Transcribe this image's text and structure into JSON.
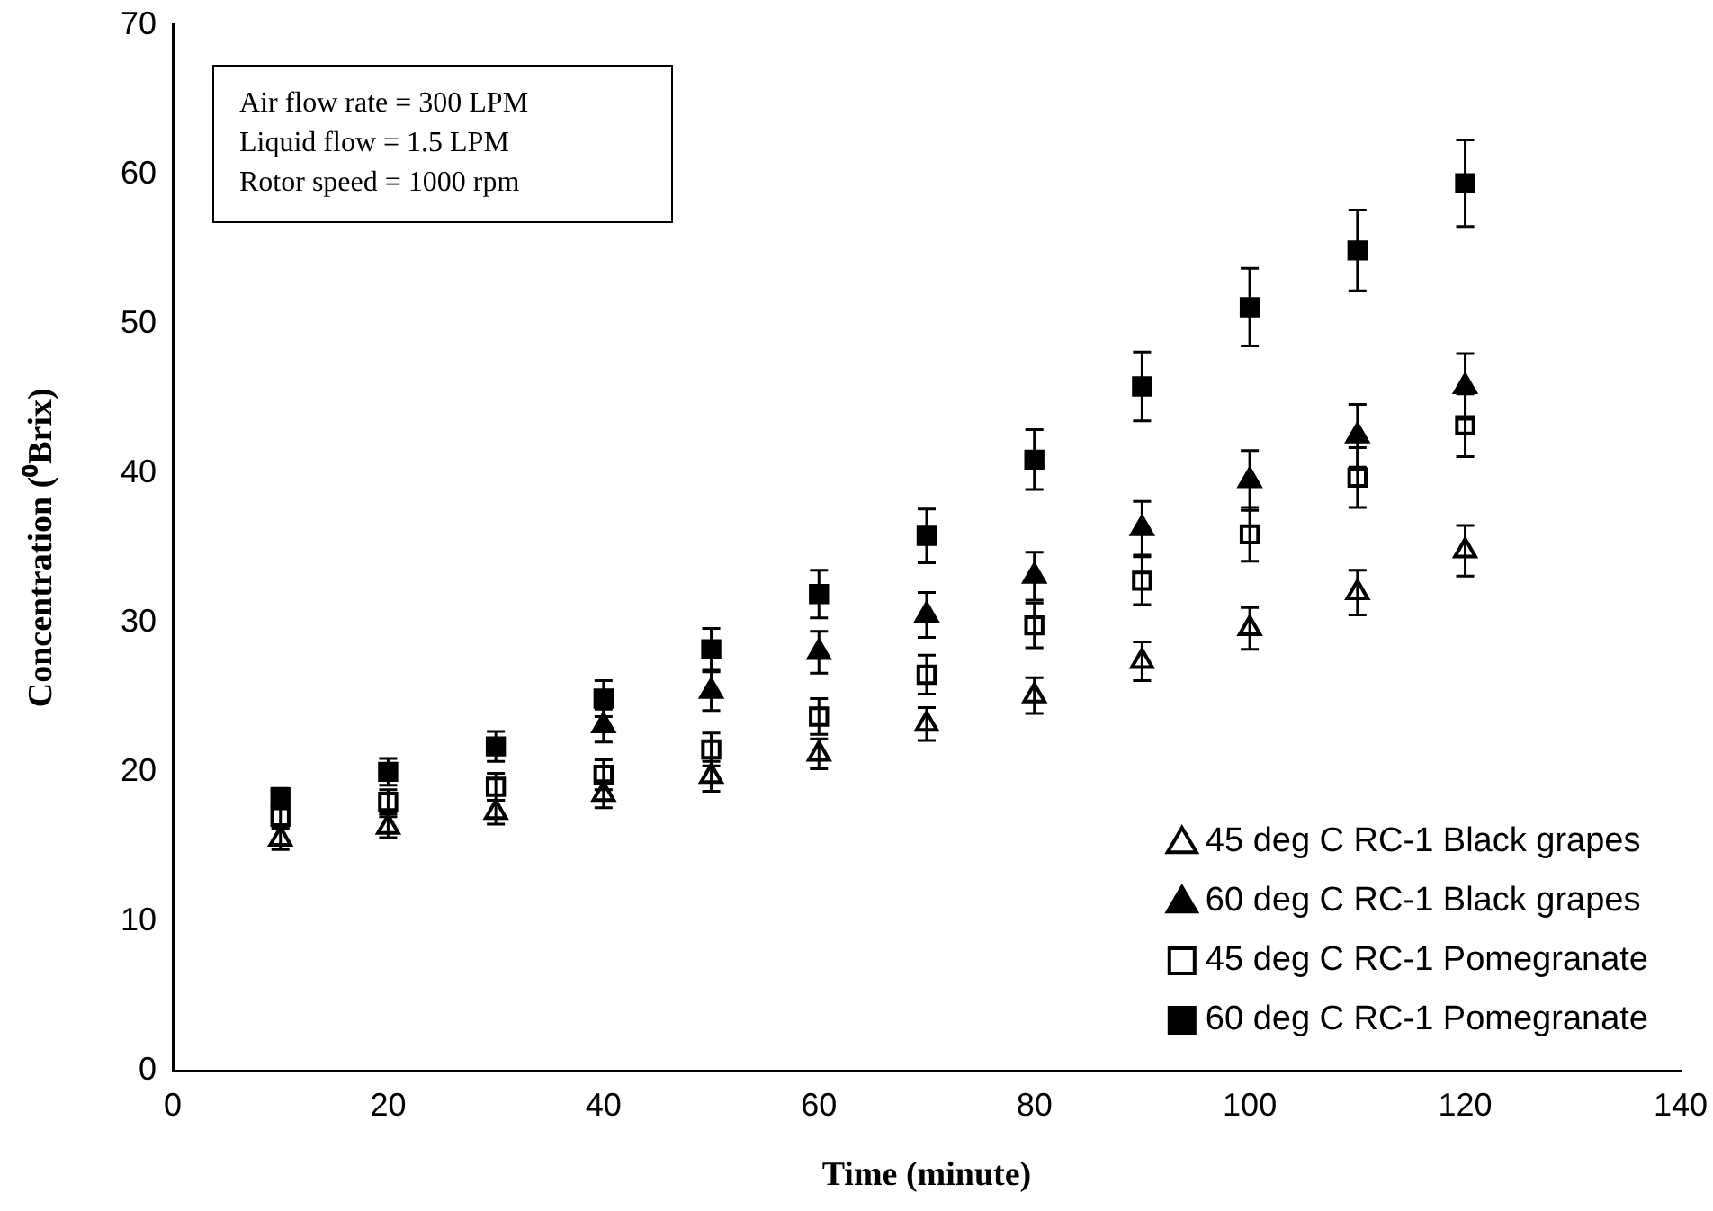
{
  "chart_data": {
    "type": "scatter",
    "xlabel": "Time (minute)",
    "ylabel": "Concentration (⁰Brix)",
    "x": [
      10,
      20,
      30,
      40,
      50,
      60,
      70,
      80,
      90,
      100,
      110,
      120
    ],
    "xlim": [
      0,
      140
    ],
    "xticks": [
      0,
      20,
      40,
      60,
      80,
      100,
      120,
      140
    ],
    "ylim": [
      0,
      70
    ],
    "yticks": [
      0,
      10,
      20,
      30,
      40,
      50,
      60,
      70
    ],
    "grid": false,
    "legend": "bottom right",
    "annotations": [
      "Air flow rate = 300 LPM",
      "Liquid flow = 1.5 LPM",
      "Rotor speed  = 1000 rpm"
    ],
    "series": [
      {
        "name": "45 deg C RC-1 Black grapes",
        "color": "#ffffff",
        "marker": "triangle",
        "values": [
          15.5,
          16.3,
          17.3,
          18.5,
          19.7,
          21.2,
          23.2,
          25.1,
          27.4,
          29.6,
          32,
          34.8
        ],
        "errors": [
          0.7,
          0.7,
          0.8,
          0.9,
          1,
          1,
          1.1,
          1.2,
          1.3,
          1.4,
          1.5,
          1.7
        ]
      },
      {
        "name": "60 deg C RC-1 Black grapes",
        "color": "#000000",
        "marker": "triangle",
        "values": [
          null,
          null,
          null,
          23.1,
          25.4,
          28,
          30.5,
          33.1,
          36.3,
          39.5,
          42.5,
          45.8
        ],
        "errors": [
          null,
          null,
          null,
          1.1,
          1.3,
          1.4,
          1.5,
          1.6,
          1.8,
          2,
          2.1,
          2.2
        ]
      },
      {
        "name": "45 deg C RC-1 Pomegranate",
        "color": "#ffffff",
        "marker": "square",
        "values": [
          17,
          18,
          19,
          19.8,
          21.5,
          23.7,
          26.5,
          29.8,
          32.8,
          35.9,
          39.7,
          43.2
        ],
        "errors": [
          0.7,
          0.8,
          0.9,
          1,
          1.1,
          1.2,
          1.3,
          1.5,
          1.6,
          1.8,
          2,
          2.1
        ]
      },
      {
        "name": "60 deg C RC-1 Pomegranate",
        "color": "#000000",
        "marker": "square",
        "values": [
          18.3,
          20,
          21.7,
          24.9,
          28.2,
          31.9,
          35.8,
          40.9,
          45.8,
          51.1,
          54.9,
          59.4
        ],
        "errors": [
          0.6,
          0.9,
          1,
          1.2,
          1.4,
          1.6,
          1.8,
          2,
          2.3,
          2.6,
          2.7,
          2.9
        ]
      }
    ]
  }
}
